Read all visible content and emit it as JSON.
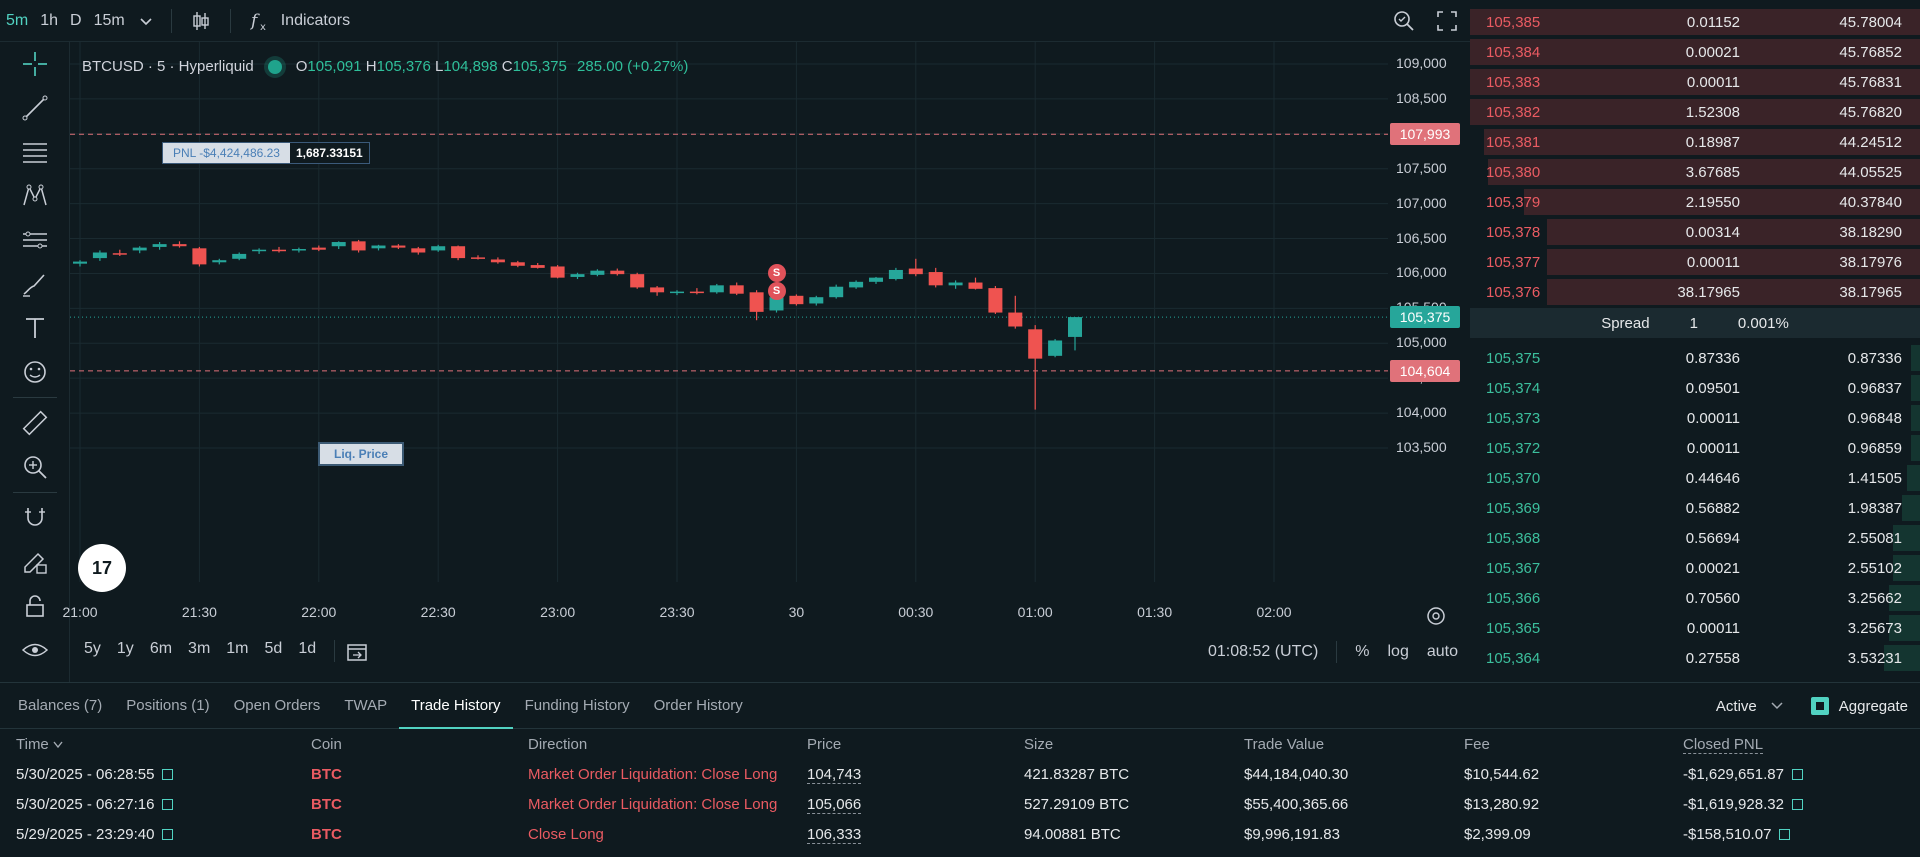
{
  "toolbar": {
    "timeframes": [
      "5m",
      "1h",
      "D",
      "15m"
    ],
    "active_timeframe": "5m",
    "indicators_label": "Indicators"
  },
  "legend": {
    "symbol": "BTCUSD · 5 · Hyperliquid",
    "o_label": "O",
    "o": "105,091",
    "h_label": "H",
    "h": "105,376",
    "l_label": "L",
    "l": "104,898",
    "c_label": "C",
    "c": "105,375",
    "change": "285.00 (+0.27%)"
  },
  "pnl_line": {
    "label": "PNL -$4,424,486.23",
    "size": "1,687.33151",
    "price_tag": "107,993",
    "price": 107993
  },
  "liq_line": {
    "label": "Liq. Price",
    "price_tag": "104,604",
    "price": 104604
  },
  "last_price": {
    "tag": "105,375",
    "price": 105375
  },
  "tv_logo": "17",
  "markers": [
    {
      "text": "S",
      "index": 35,
      "price": 106000
    },
    {
      "text": "S",
      "index": 35,
      "price": 105750
    }
  ],
  "chart_data": {
    "type": "candlestick",
    "symbol": "BTCUSD",
    "interval": "5",
    "ylim": [
      103100,
      109200
    ],
    "yticks": [
      109000,
      108500,
      108000,
      107500,
      107000,
      106500,
      106000,
      105500,
      105000,
      104500,
      104000,
      103500
    ],
    "ytick_labels": [
      "109,000",
      "108,500",
      "108,000",
      "107,500",
      "107,000",
      "106,500",
      "106,000",
      "105,500",
      "105,000",
      "104,500",
      "104,000",
      "103,500"
    ],
    "xticks": [
      {
        "label": "21:00",
        "index": 0
      },
      {
        "label": "21:30",
        "index": 6
      },
      {
        "label": "22:00",
        "index": 12
      },
      {
        "label": "22:30",
        "index": 18
      },
      {
        "label": "23:00",
        "index": 24
      },
      {
        "label": "23:30",
        "index": 30
      },
      {
        "label": "30",
        "index": 36
      },
      {
        "label": "00:30",
        "index": 42
      },
      {
        "label": "01:00",
        "index": 48
      },
      {
        "label": "01:30",
        "index": 54
      },
      {
        "label": "02:00",
        "index": 60
      }
    ],
    "candles": [
      {
        "o": 106140,
        "h": 106190,
        "l": 106100,
        "c": 106170
      },
      {
        "o": 106220,
        "h": 106330,
        "l": 106180,
        "c": 106300
      },
      {
        "o": 106290,
        "h": 106340,
        "l": 106250,
        "c": 106270
      },
      {
        "o": 106330,
        "h": 106390,
        "l": 106290,
        "c": 106370
      },
      {
        "o": 106380,
        "h": 106450,
        "l": 106340,
        "c": 106420
      },
      {
        "o": 106420,
        "h": 106460,
        "l": 106370,
        "c": 106390
      },
      {
        "o": 106360,
        "h": 106380,
        "l": 106100,
        "c": 106130
      },
      {
        "o": 106160,
        "h": 106210,
        "l": 106130,
        "c": 106190
      },
      {
        "o": 106210,
        "h": 106300,
        "l": 106190,
        "c": 106280
      },
      {
        "o": 106330,
        "h": 106360,
        "l": 106280,
        "c": 106340
      },
      {
        "o": 106340,
        "h": 106380,
        "l": 106300,
        "c": 106330
      },
      {
        "o": 106330,
        "h": 106370,
        "l": 106300,
        "c": 106350
      },
      {
        "o": 106370,
        "h": 106400,
        "l": 106320,
        "c": 106340
      },
      {
        "o": 106390,
        "h": 106460,
        "l": 106350,
        "c": 106450
      },
      {
        "o": 106460,
        "h": 106480,
        "l": 106300,
        "c": 106330
      },
      {
        "o": 106360,
        "h": 106410,
        "l": 106330,
        "c": 106400
      },
      {
        "o": 106400,
        "h": 106420,
        "l": 106350,
        "c": 106370
      },
      {
        "o": 106360,
        "h": 106380,
        "l": 106270,
        "c": 106300
      },
      {
        "o": 106330,
        "h": 106410,
        "l": 106310,
        "c": 106390
      },
      {
        "o": 106390,
        "h": 106400,
        "l": 106190,
        "c": 106220
      },
      {
        "o": 106230,
        "h": 106260,
        "l": 106200,
        "c": 106210
      },
      {
        "o": 106200,
        "h": 106230,
        "l": 106140,
        "c": 106160
      },
      {
        "o": 106160,
        "h": 106180,
        "l": 106090,
        "c": 106110
      },
      {
        "o": 106120,
        "h": 106150,
        "l": 106070,
        "c": 106080
      },
      {
        "o": 106100,
        "h": 106120,
        "l": 105930,
        "c": 105940
      },
      {
        "o": 105950,
        "h": 106010,
        "l": 105920,
        "c": 105990
      },
      {
        "o": 105980,
        "h": 106060,
        "l": 105960,
        "c": 106040
      },
      {
        "o": 106040,
        "h": 106070,
        "l": 105970,
        "c": 105990
      },
      {
        "o": 105990,
        "h": 106010,
        "l": 105780,
        "c": 105800
      },
      {
        "o": 105800,
        "h": 105820,
        "l": 105680,
        "c": 105730
      },
      {
        "o": 105720,
        "h": 105760,
        "l": 105690,
        "c": 105740
      },
      {
        "o": 105740,
        "h": 105790,
        "l": 105700,
        "c": 105730
      },
      {
        "o": 105730,
        "h": 105850,
        "l": 105710,
        "c": 105830
      },
      {
        "o": 105830,
        "h": 105870,
        "l": 105690,
        "c": 105710
      },
      {
        "o": 105730,
        "h": 105760,
        "l": 105330,
        "c": 105450
      },
      {
        "o": 105470,
        "h": 105690,
        "l": 105440,
        "c": 105660
      },
      {
        "o": 105680,
        "h": 105700,
        "l": 105540,
        "c": 105560
      },
      {
        "o": 105570,
        "h": 105680,
        "l": 105540,
        "c": 105660
      },
      {
        "o": 105660,
        "h": 105840,
        "l": 105640,
        "c": 105810
      },
      {
        "o": 105800,
        "h": 105900,
        "l": 105780,
        "c": 105880
      },
      {
        "o": 105880,
        "h": 105950,
        "l": 105850,
        "c": 105940
      },
      {
        "o": 105920,
        "h": 106080,
        "l": 105900,
        "c": 106050
      },
      {
        "o": 106070,
        "h": 106210,
        "l": 105960,
        "c": 105990
      },
      {
        "o": 106020,
        "h": 106080,
        "l": 105800,
        "c": 105830
      },
      {
        "o": 105830,
        "h": 105900,
        "l": 105780,
        "c": 105870
      },
      {
        "o": 105870,
        "h": 105940,
        "l": 105770,
        "c": 105780
      },
      {
        "o": 105790,
        "h": 105820,
        "l": 105420,
        "c": 105440
      },
      {
        "o": 105440,
        "h": 105680,
        "l": 105210,
        "c": 105240
      },
      {
        "o": 105200,
        "h": 105260,
        "l": 104050,
        "c": 104780
      },
      {
        "o": 104820,
        "h": 105060,
        "l": 104800,
        "c": 105040
      },
      {
        "o": 105091,
        "h": 105376,
        "l": 104898,
        "c": 105375
      }
    ]
  },
  "chart_footer": {
    "ranges": [
      "5y",
      "1y",
      "6m",
      "3m",
      "1m",
      "5d",
      "1d"
    ],
    "time": "01:08:52 (UTC)",
    "percent": "%",
    "log": "log",
    "auto": "auto"
  },
  "order_book": {
    "asks": [
      {
        "price": "105,385",
        "size": "0.01152",
        "total": "45.78004",
        "depth": 1.0
      },
      {
        "price": "105,384",
        "size": "0.00021",
        "total": "45.76852",
        "depth": 1.0
      },
      {
        "price": "105,383",
        "size": "0.00011",
        "total": "45.76831",
        "depth": 1.0
      },
      {
        "price": "105,382",
        "size": "1.52308",
        "total": "45.76820",
        "depth": 1.0
      },
      {
        "price": "105,381",
        "size": "0.18987",
        "total": "44.24512",
        "depth": 0.97
      },
      {
        "price": "105,380",
        "size": "3.67685",
        "total": "44.05525",
        "depth": 0.96
      },
      {
        "price": "105,379",
        "size": "2.19550",
        "total": "40.37840",
        "depth": 0.88
      },
      {
        "price": "105,378",
        "size": "0.00314",
        "total": "38.18290",
        "depth": 0.83
      },
      {
        "price": "105,377",
        "size": "0.00011",
        "total": "38.17976",
        "depth": 0.83
      },
      {
        "price": "105,376",
        "size": "38.17965",
        "total": "38.17965",
        "depth": 0.83
      }
    ],
    "spread": {
      "label": "Spread",
      "value": "1",
      "percent": "0.001%"
    },
    "bids": [
      {
        "price": "105,375",
        "size": "0.87336",
        "total": "0.87336",
        "depth": 0.02
      },
      {
        "price": "105,374",
        "size": "0.09501",
        "total": "0.96837",
        "depth": 0.02
      },
      {
        "price": "105,373",
        "size": "0.00011",
        "total": "0.96848",
        "depth": 0.02
      },
      {
        "price": "105,372",
        "size": "0.00011",
        "total": "0.96859",
        "depth": 0.02
      },
      {
        "price": "105,370",
        "size": "0.44646",
        "total": "1.41505",
        "depth": 0.03
      },
      {
        "price": "105,369",
        "size": "0.56882",
        "total": "1.98387",
        "depth": 0.04
      },
      {
        "price": "105,368",
        "size": "0.56694",
        "total": "2.55081",
        "depth": 0.06
      },
      {
        "price": "105,367",
        "size": "0.00021",
        "total": "2.55102",
        "depth": 0.06
      },
      {
        "price": "105,366",
        "size": "0.70560",
        "total": "3.25662",
        "depth": 0.07
      },
      {
        "price": "105,365",
        "size": "0.00011",
        "total": "3.25673",
        "depth": 0.07
      },
      {
        "price": "105,364",
        "size": "0.27558",
        "total": "3.53231",
        "depth": 0.08
      }
    ]
  },
  "bottom": {
    "tabs": [
      "Balances (7)",
      "Positions (1)",
      "Open Orders",
      "TWAP",
      "Trade History",
      "Funding History",
      "Order History"
    ],
    "active_tab": "Trade History",
    "filter": "Active",
    "aggregate_label": "Aggregate",
    "columns": [
      "Time",
      "Coin",
      "Direction",
      "Price",
      "Size",
      "Trade Value",
      "Fee",
      "Closed PNL"
    ],
    "rows": [
      {
        "time": "5/30/2025 - 06:28:55",
        "coin": "BTC",
        "direction": "Market Order Liquidation: Close Long",
        "price": "104,743",
        "size": "421.83287 BTC",
        "value": "$44,184,040.30",
        "fee": "$10,544.62",
        "pnl": "-$1,629,651.87"
      },
      {
        "time": "5/30/2025 - 06:27:16",
        "coin": "BTC",
        "direction": "Market Order Liquidation: Close Long",
        "price": "105,066",
        "size": "527.29109 BTC",
        "value": "$55,400,365.66",
        "fee": "$13,280.92",
        "pnl": "-$1,619,928.32"
      },
      {
        "time": "5/29/2025 - 23:29:40",
        "coin": "BTC",
        "direction": "Close Long",
        "price": "106,333",
        "size": "94.00881 BTC",
        "value": "$9,996,191.83",
        "fee": "$2,399.09",
        "pnl": "-$158,510.07"
      }
    ]
  },
  "colors": {
    "up": "#26a69a",
    "down": "#ef5350",
    "accent": "#51d2c1",
    "background": "#0f1a1f"
  },
  "icons": [
    "crosshair-icon",
    "trendline-icon",
    "fib-icon",
    "pattern-icon",
    "prediction-icon",
    "brush-icon",
    "text-icon",
    "emoji-icon",
    "ruler-icon",
    "zoom-in-icon",
    "magnet-icon",
    "lock-draw-icon",
    "lock-icon",
    "eye-icon",
    "candle-type-icon",
    "fx-icon",
    "search-icon",
    "fullscreen-icon",
    "settings-icon",
    "calendar-icon",
    "external-link-icon"
  ]
}
